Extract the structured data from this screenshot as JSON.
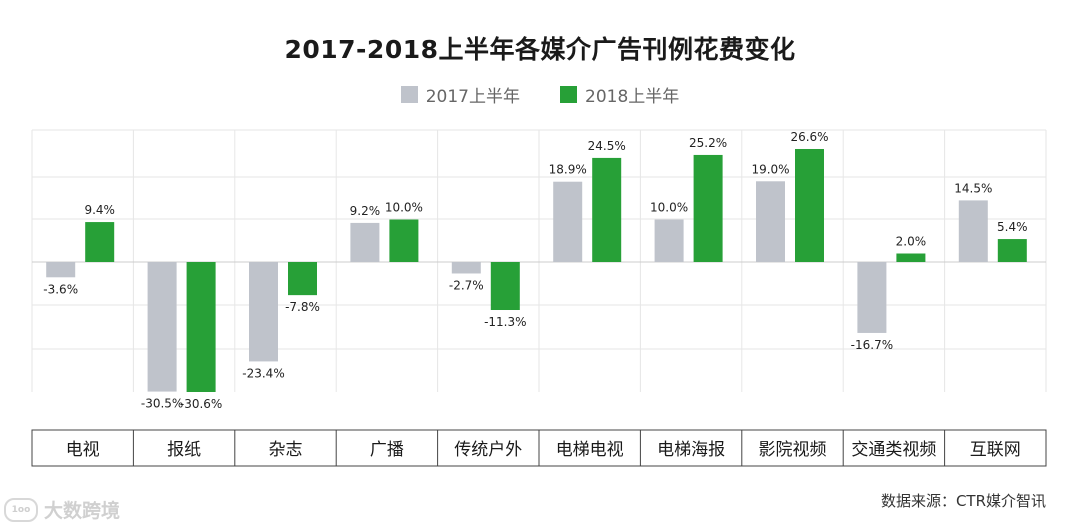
{
  "title": "2017-2018上半年各媒介广告刊例花费变化",
  "legend": [
    {
      "label": "2017上半年",
      "color": "#bfc3cb"
    },
    {
      "label": "2018上半年",
      "color": "#27a037"
    }
  ],
  "source": "数据来源：CTR媒介智讯",
  "watermark": "大数跨境",
  "chart_data": {
    "type": "bar",
    "title": "2017-2018上半年各媒介广告刊例花费变化",
    "categories": [
      "电视",
      "报纸",
      "杂志",
      "广播",
      "传统户外",
      "电梯电视",
      "电梯海报",
      "影院视频",
      "交通类视频",
      "互联网"
    ],
    "series": [
      {
        "name": "2017上半年",
        "color": "#bfc3cb",
        "values": [
          -3.6,
          -30.5,
          -23.4,
          9.2,
          -2.7,
          18.9,
          10.0,
          19.0,
          -16.7,
          14.5
        ]
      },
      {
        "name": "2018上半年",
        "color": "#27a037",
        "values": [
          9.4,
          -30.6,
          -7.8,
          10.0,
          -11.3,
          24.5,
          25.2,
          26.6,
          2.0,
          5.4
        ]
      }
    ],
    "value_suffix": "%",
    "ylim": [
      -30.6,
      30
    ],
    "grid": true,
    "legend_position": "top-center",
    "xlabel": "",
    "ylabel": ""
  }
}
